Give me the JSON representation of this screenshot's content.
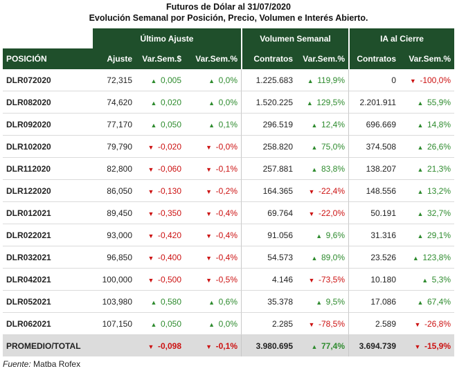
{
  "title_line1": "Futuros de Dólar al 31/07/2020",
  "title_line2": "Evolución Semanal por Posición, Precio, Volumen e Interés Abierto.",
  "group_headers": [
    "Último Ajuste",
    "Volumen Semanal",
    "IA al Cierre"
  ],
  "columns": [
    "POSICIÓN",
    "Ajuste",
    "Var.Sem.$",
    "Var.Sem.%",
    "Contratos",
    "Var.Sem.%",
    "Contratos",
    "Var.Sem.%"
  ],
  "rows": [
    {
      "pos": "DLR072020",
      "ajuste": "72,315",
      "var_usd": {
        "v": "0,005",
        "dir": "up"
      },
      "var_pct": {
        "v": "0,0%",
        "dir": "up"
      },
      "vol": "1.225.683",
      "vol_pct": {
        "v": "119,9%",
        "dir": "up"
      },
      "ia": "0",
      "ia_pct": {
        "v": "-100,0%",
        "dir": "down"
      }
    },
    {
      "pos": "DLR082020",
      "ajuste": "74,620",
      "var_usd": {
        "v": "0,020",
        "dir": "up"
      },
      "var_pct": {
        "v": "0,0%",
        "dir": "up"
      },
      "vol": "1.520.225",
      "vol_pct": {
        "v": "129,5%",
        "dir": "up"
      },
      "ia": "2.201.911",
      "ia_pct": {
        "v": "55,9%",
        "dir": "up"
      }
    },
    {
      "pos": "DLR092020",
      "ajuste": "77,170",
      "var_usd": {
        "v": "0,050",
        "dir": "up"
      },
      "var_pct": {
        "v": "0,1%",
        "dir": "up"
      },
      "vol": "296.519",
      "vol_pct": {
        "v": "12,4%",
        "dir": "up"
      },
      "ia": "696.669",
      "ia_pct": {
        "v": "14,8%",
        "dir": "up"
      }
    },
    {
      "pos": "DLR102020",
      "ajuste": "79,790",
      "var_usd": {
        "v": "-0,020",
        "dir": "down"
      },
      "var_pct": {
        "v": "-0,0%",
        "dir": "down"
      },
      "vol": "258.820",
      "vol_pct": {
        "v": "75,0%",
        "dir": "up"
      },
      "ia": "374.508",
      "ia_pct": {
        "v": "26,6%",
        "dir": "up"
      }
    },
    {
      "pos": "DLR112020",
      "ajuste": "82,800",
      "var_usd": {
        "v": "-0,060",
        "dir": "down"
      },
      "var_pct": {
        "v": "-0,1%",
        "dir": "down"
      },
      "vol": "257.881",
      "vol_pct": {
        "v": "83,8%",
        "dir": "up"
      },
      "ia": "138.207",
      "ia_pct": {
        "v": "21,3%",
        "dir": "up"
      }
    },
    {
      "pos": "DLR122020",
      "ajuste": "86,050",
      "var_usd": {
        "v": "-0,130",
        "dir": "down"
      },
      "var_pct": {
        "v": "-0,2%",
        "dir": "down"
      },
      "vol": "164.365",
      "vol_pct": {
        "v": "-22,4%",
        "dir": "down"
      },
      "ia": "148.556",
      "ia_pct": {
        "v": "13,2%",
        "dir": "up"
      }
    },
    {
      "pos": "DLR012021",
      "ajuste": "89,450",
      "var_usd": {
        "v": "-0,350",
        "dir": "down"
      },
      "var_pct": {
        "v": "-0,4%",
        "dir": "down"
      },
      "vol": "69.764",
      "vol_pct": {
        "v": "-22,0%",
        "dir": "down"
      },
      "ia": "50.191",
      "ia_pct": {
        "v": "32,7%",
        "dir": "up"
      }
    },
    {
      "pos": "DLR022021",
      "ajuste": "93,000",
      "var_usd": {
        "v": "-0,420",
        "dir": "down"
      },
      "var_pct": {
        "v": "-0,4%",
        "dir": "down"
      },
      "vol": "91.056",
      "vol_pct": {
        "v": "9,6%",
        "dir": "up"
      },
      "ia": "31.316",
      "ia_pct": {
        "v": "29,1%",
        "dir": "up"
      }
    },
    {
      "pos": "DLR032021",
      "ajuste": "96,850",
      "var_usd": {
        "v": "-0,400",
        "dir": "down"
      },
      "var_pct": {
        "v": "-0,4%",
        "dir": "down"
      },
      "vol": "54.573",
      "vol_pct": {
        "v": "89,0%",
        "dir": "up"
      },
      "ia": "23.526",
      "ia_pct": {
        "v": "123,8%",
        "dir": "up"
      }
    },
    {
      "pos": "DLR042021",
      "ajuste": "100,000",
      "var_usd": {
        "v": "-0,500",
        "dir": "down"
      },
      "var_pct": {
        "v": "-0,5%",
        "dir": "down"
      },
      "vol": "4.146",
      "vol_pct": {
        "v": "-73,5%",
        "dir": "down"
      },
      "ia": "10.180",
      "ia_pct": {
        "v": "5,3%",
        "dir": "up"
      }
    },
    {
      "pos": "DLR052021",
      "ajuste": "103,980",
      "var_usd": {
        "v": "0,580",
        "dir": "up"
      },
      "var_pct": {
        "v": "0,6%",
        "dir": "up"
      },
      "vol": "35.378",
      "vol_pct": {
        "v": "9,5%",
        "dir": "up"
      },
      "ia": "17.086",
      "ia_pct": {
        "v": "67,4%",
        "dir": "up"
      }
    },
    {
      "pos": "DLR062021",
      "ajuste": "107,150",
      "var_usd": {
        "v": "0,050",
        "dir": "up"
      },
      "var_pct": {
        "v": "0,0%",
        "dir": "up"
      },
      "vol": "2.285",
      "vol_pct": {
        "v": "-78,5%",
        "dir": "down"
      },
      "ia": "2.589",
      "ia_pct": {
        "v": "-26,8%",
        "dir": "down"
      }
    }
  ],
  "total": {
    "pos": "PROMEDIO/TOTAL",
    "ajuste": "",
    "var_usd": {
      "v": "-0,098",
      "dir": "down"
    },
    "var_pct": {
      "v": "-0,1%",
      "dir": "down"
    },
    "vol": "3.980.695",
    "vol_pct": {
      "v": "77,4%",
      "dir": "up"
    },
    "ia": "3.694.739",
    "ia_pct": {
      "v": "-15,9%",
      "dir": "down"
    }
  },
  "source_label": "Fuente:",
  "source_value": " Matba Rofex",
  "icons": {
    "up": "chevron-up-icon",
    "down": "chevron-down-icon"
  },
  "colors": {
    "header_bg": "#1f4f2b",
    "up": "#2e8b2e",
    "down": "#cc1111",
    "total_bg": "#dcdcdc"
  }
}
